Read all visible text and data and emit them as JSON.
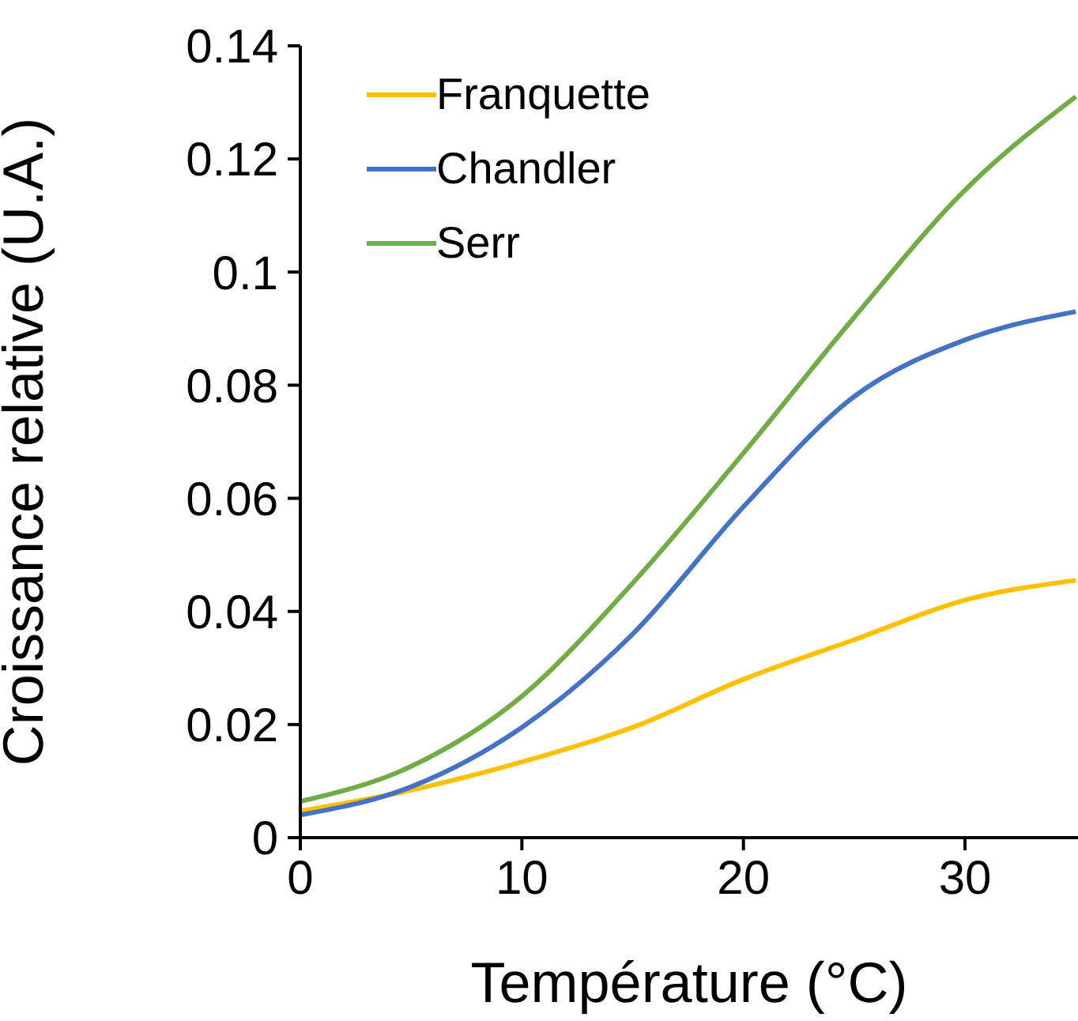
{
  "chart_data": {
    "type": "line",
    "xlabel": "Température (°C)",
    "ylabel": "Croissance relative (U.A.)",
    "x": [
      0,
      5,
      10,
      15,
      20,
      25,
      30,
      35
    ],
    "series": [
      {
        "name": "Franquette",
        "color": "#ffc000",
        "values": [
          0.0047,
          0.0084,
          0.0134,
          0.0195,
          0.028,
          0.035,
          0.042,
          0.0455
        ]
      },
      {
        "name": "Chandler",
        "color": "#4472c4",
        "values": [
          0.004,
          0.009,
          0.0195,
          0.036,
          0.0585,
          0.078,
          0.088,
          0.093
        ]
      },
      {
        "name": "Serr",
        "color": "#70ad47",
        "values": [
          0.0064,
          0.0126,
          0.025,
          0.045,
          0.068,
          0.092,
          0.1145,
          0.131
        ]
      }
    ],
    "xlim": [
      0,
      35.1
    ],
    "xticks": [
      0,
      10,
      20,
      30
    ],
    "ylim": [
      0,
      0.14
    ],
    "yticks": [
      0,
      0.02,
      0.04,
      0.06,
      0.08,
      0.1,
      0.12,
      0.14
    ],
    "legend": "top left",
    "grid": false,
    "marker": "none",
    "line_style": "solid"
  }
}
